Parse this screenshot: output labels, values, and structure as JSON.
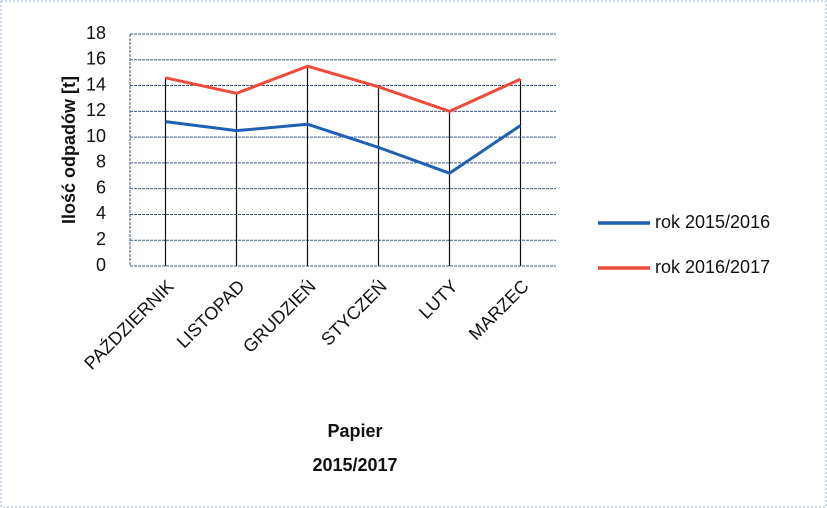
{
  "chart_data": {
    "type": "line",
    "ylabel": "Ilość odpadów [t]",
    "xlabel": [
      "Papier",
      "2015/2017"
    ],
    "categories": [
      "PAŹDZIERNIK",
      "LISTOPAD",
      "GRUDZIEŃ",
      "STYCZEŃ",
      "LUTY",
      "MARZEC"
    ],
    "series": [
      {
        "name": "rok 2015/2016",
        "color": "#1f5fb4",
        "values": [
          11.2,
          10.5,
          11.0,
          9.2,
          7.2,
          10.9
        ]
      },
      {
        "name": "rok 2016/2017",
        "color": "#ef4a3a",
        "values": [
          14.6,
          13.4,
          15.5,
          13.9,
          12.0,
          14.5
        ]
      }
    ],
    "ylim": [
      0,
      18
    ],
    "yticks": [
      0,
      2,
      4,
      6,
      8,
      10,
      12,
      14,
      16,
      18
    ],
    "grid": true,
    "legend": "right"
  }
}
